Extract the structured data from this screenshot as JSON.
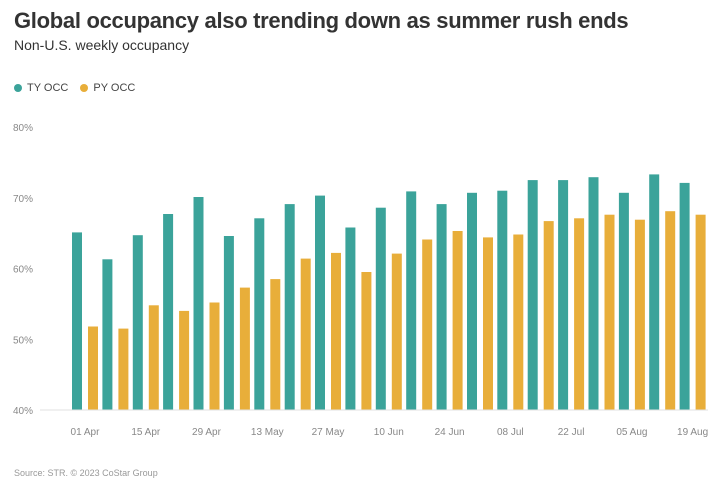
{
  "header": {
    "title": "Global occupancy also trending down as summer rush ends",
    "subtitle": "Non-U.S. weekly occupancy"
  },
  "legend": {
    "items": [
      {
        "label": "TY OCC",
        "color": "#3ba39a"
      },
      {
        "label": "PY OCC",
        "color": "#e8ae3a"
      }
    ]
  },
  "footer": {
    "source": "Source: STR. © 2023 CoStar Group"
  },
  "chart_data": {
    "type": "bar",
    "x_tick_labels": [
      "01 Apr",
      "15 Apr",
      "29 Apr",
      "13 May",
      "27 May",
      "10 Jun",
      "24 Jun",
      "08 Jul",
      "22 Jul",
      "05 Aug",
      "19 Aug"
    ],
    "x_tick_every": 2,
    "y_tick_labels": [
      "40%",
      "50%",
      "60%",
      "70%",
      "80%"
    ],
    "ylim": [
      40,
      80
    ],
    "y_ticks": [
      40,
      50,
      60,
      70,
      80
    ],
    "grid": false,
    "legend_position": "top-left",
    "series": [
      {
        "name": "TY OCC",
        "color": "#3ba39a",
        "values": [
          65.1,
          61.3,
          64.7,
          67.7,
          70.1,
          64.6,
          67.1,
          69.1,
          70.3,
          65.8,
          68.6,
          70.9,
          69.1,
          70.7,
          71.0,
          72.5,
          72.5,
          72.9,
          70.7,
          73.3,
          72.1
        ]
      },
      {
        "name": "PY OCC",
        "color": "#e8ae3a",
        "values": [
          51.8,
          51.5,
          54.8,
          54.0,
          55.2,
          57.3,
          58.5,
          61.4,
          62.2,
          59.5,
          62.1,
          64.1,
          65.3,
          64.4,
          64.8,
          66.7,
          67.1,
          67.6,
          66.9,
          68.1,
          67.6
        ]
      }
    ]
  }
}
